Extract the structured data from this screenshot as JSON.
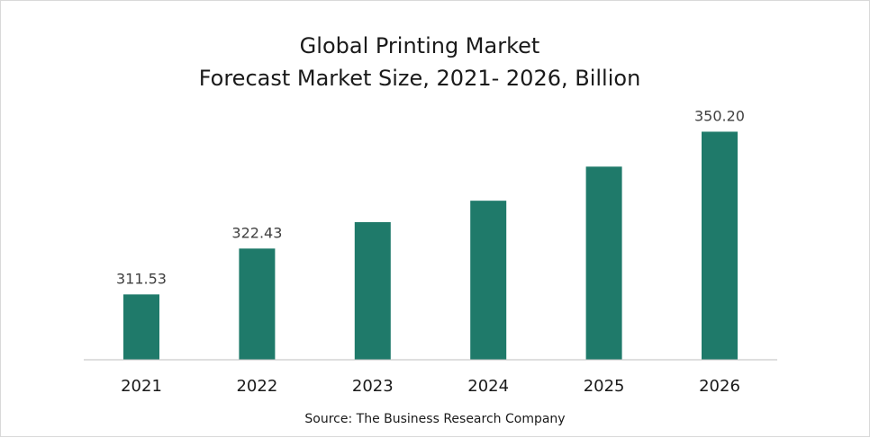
{
  "chart_data": {
    "type": "bar",
    "title": "Global Printing Market",
    "subtitle": "Forecast Market Size, 2021- 2026, Billion",
    "categories": [
      "2021",
      "2022",
      "2023",
      "2024",
      "2025",
      "2026"
    ],
    "values": [
      311.53,
      322.43,
      328.7,
      333.8,
      341.9,
      350.2
    ],
    "data_labels": [
      "311.53",
      "322.43",
      "",
      "",
      "",
      "350.20"
    ],
    "xlabel": "",
    "ylabel": "",
    "ylim": [
      296,
      353.5
    ],
    "grid": false,
    "legend": "none",
    "bar_color": "#1f7a6a",
    "source": "Source: The Business Research Company"
  }
}
